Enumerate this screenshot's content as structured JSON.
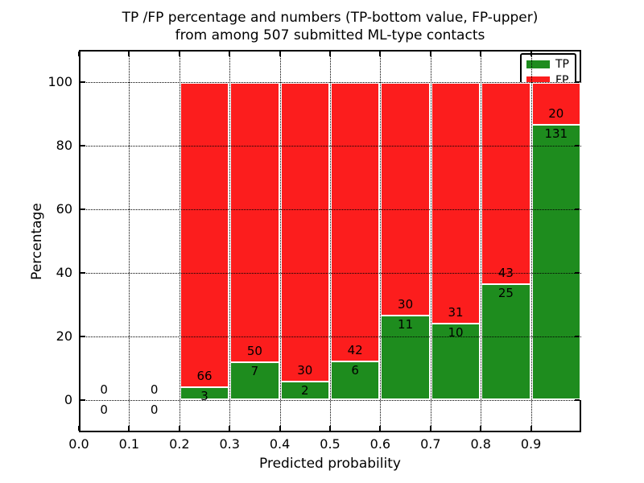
{
  "title": {
    "line1": "TP /FP percentage and numbers (TP-bottom value, FP-upper)",
    "line2": "from among 507 submitted ML-type contacts"
  },
  "axes": {
    "xlabel": "Predicted probability",
    "ylabel": "Percentage"
  },
  "legend": {
    "position": "upper right",
    "items": [
      {
        "label": "TP",
        "color": "#1e8c1e"
      },
      {
        "label": "FP",
        "color": "#fc1d1d"
      }
    ]
  },
  "colors": {
    "tp": "#1e8c1e",
    "fp": "#fc1d1d",
    "bar_edge": "#ffffff",
    "grid": "#000000",
    "text": "#000000",
    "background": "#ffffff"
  },
  "chart_data": {
    "type": "bar",
    "stacked": true,
    "title": "TP /FP percentage and numbers (TP-bottom value, FP-upper)\nfrom among 507 submitted ML-type contacts",
    "xlabel": "Predicted probability",
    "ylabel": "Percentage",
    "xlim": [
      0.0,
      1.0
    ],
    "ylim": [
      -10,
      110
    ],
    "grid": true,
    "legend_position": "upper right",
    "total_contacts": 507,
    "bin_width": 0.1,
    "bin_starts": [
      0.0,
      0.1,
      0.2,
      0.3,
      0.4,
      0.5,
      0.6,
      0.7,
      0.8,
      0.9
    ],
    "xticks": [
      "0.0",
      "0.1",
      "0.2",
      "0.3",
      "0.4",
      "0.5",
      "0.6",
      "0.7",
      "0.8",
      "0.9"
    ],
    "yticks": [
      0,
      20,
      40,
      60,
      80,
      100
    ],
    "series": [
      {
        "name": "TP",
        "color": "#1e8c1e",
        "counts": [
          0,
          0,
          3,
          7,
          2,
          6,
          11,
          10,
          25,
          131
        ]
      },
      {
        "name": "FP",
        "color": "#fc1d1d",
        "counts": [
          0,
          0,
          66,
          50,
          30,
          42,
          30,
          31,
          43,
          20
        ]
      }
    ],
    "bar_unit": "percent of bin total; TP+FP stack to 100% per non-empty bin",
    "labels_shown": "raw counts printed at TP/FP boundary of each bin"
  }
}
